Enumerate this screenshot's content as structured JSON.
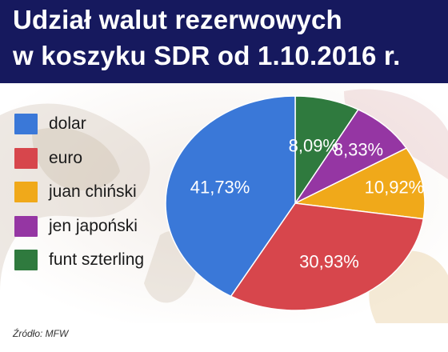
{
  "title": {
    "line1": "Udział walut rezerwowych",
    "line2": "w koszyku SDR od 1.10.2016 r."
  },
  "source": "Źródło: MFW",
  "colors": {
    "title_bar": "#16195e",
    "dolar": "#3a78d8",
    "euro": "#d7464c",
    "juan": "#f0a91a",
    "jen": "#9536a3",
    "funt": "#2f7a3e"
  },
  "chart_data": {
    "type": "pie",
    "title": "Udział walut rezerwowych w koszyku SDR od 1.10.2016 r.",
    "legend_position": "left",
    "slices": [
      {
        "label": "dolar",
        "value": 41.73,
        "value_label": "41,73%",
        "color": "#3a78d8"
      },
      {
        "label": "euro",
        "value": 30.93,
        "value_label": "30,93%",
        "color": "#d7464c"
      },
      {
        "label": "juan chiński",
        "value": 10.92,
        "value_label": "10,92%",
        "color": "#f0a91a"
      },
      {
        "label": "jen japoński",
        "value": 8.33,
        "value_label": "8,33%",
        "color": "#9536a3"
      },
      {
        "label": "funt szterling",
        "value": 8.09,
        "value_label": "8,09%",
        "color": "#2f7a3e"
      }
    ]
  }
}
